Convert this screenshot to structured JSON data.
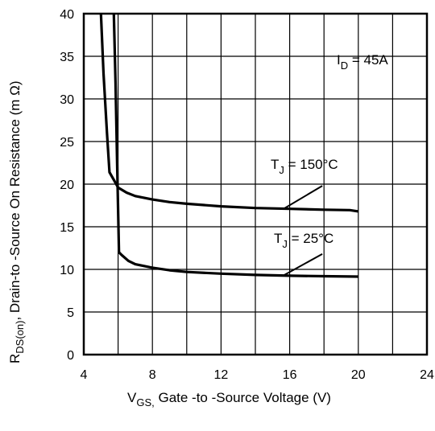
{
  "chart_data": {
    "type": "line",
    "title": "",
    "xlabel": {
      "main": "V",
      "sub": "GS,",
      "rest": " Gate -to -Source Voltage  (V)"
    },
    "ylabel": {
      "main": "R",
      "sub": "DS(on)",
      "rest": ",  Drain-to -Source On Resistance (m   Ω)"
    },
    "xlim": [
      4,
      24
    ],
    "ylim": [
      0,
      40
    ],
    "xticks": [
      4,
      8,
      12,
      16,
      20,
      24
    ],
    "yticks": [
      0,
      5,
      10,
      15,
      20,
      25,
      30,
      35,
      40
    ],
    "grid": true,
    "series": [
      {
        "name": {
          "main": "T",
          "sub": "J",
          "rest": " = 150°C"
        },
        "x": [
          5.0,
          5.15,
          5.35,
          5.5,
          5.75,
          6.0,
          6.5,
          7.0,
          8.0,
          9.0,
          10.0,
          12.0,
          14.0,
          16.0,
          18.0,
          19.5,
          20.0
        ],
        "y": [
          40,
          33,
          26,
          21.4,
          20.5,
          19.6,
          19.0,
          18.6,
          18.2,
          17.9,
          17.7,
          17.4,
          17.2,
          17.1,
          17.0,
          16.95,
          16.8
        ]
      },
      {
        "name": {
          "main": "T",
          "sub": "J",
          "rest": " = 25°C"
        },
        "x": [
          5.75,
          5.85,
          5.95,
          6.05,
          6.2,
          6.6,
          7.0,
          8.0,
          9.0,
          10.0,
          12.0,
          14.0,
          16.0,
          18.0,
          20.0
        ],
        "y": [
          40,
          32,
          22,
          12.0,
          11.7,
          11.0,
          10.6,
          10.2,
          9.9,
          9.7,
          9.5,
          9.35,
          9.25,
          9.2,
          9.15
        ]
      }
    ],
    "annotations": [
      {
        "main": "I",
        "sub": "D",
        "rest": " = 45A"
      }
    ]
  }
}
